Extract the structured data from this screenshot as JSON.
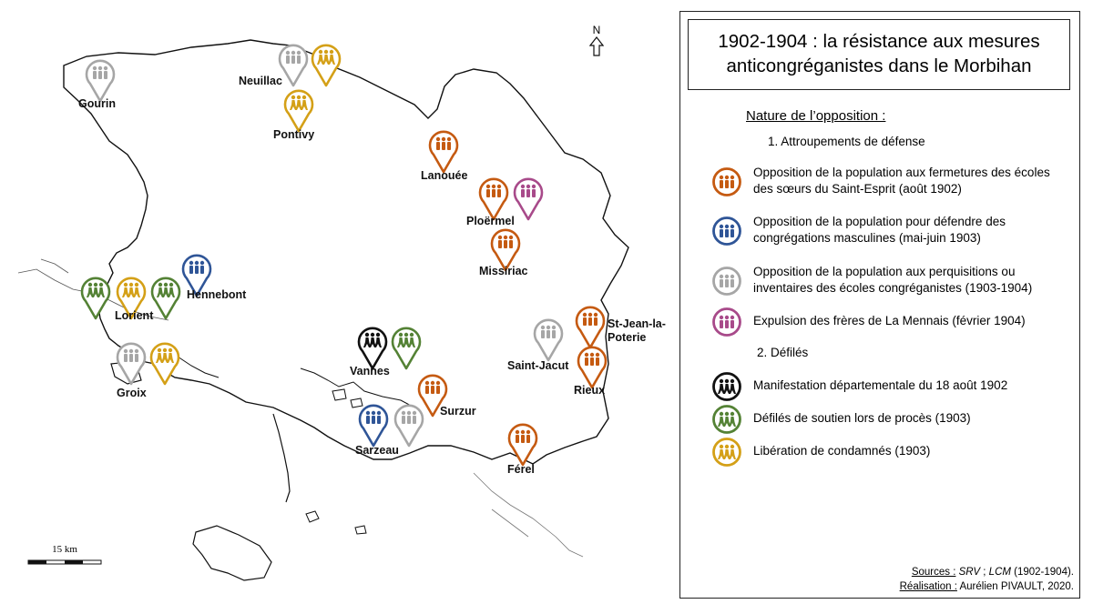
{
  "title": "1902-1904 : la résistance aux mesures anticongréganistes dans le Morbihan",
  "title_lines": [
    "1902-1904 : la résistance aux mesures",
    "anticongréganistes dans le Morbihan"
  ],
  "north_label": "N",
  "scale_label": "15 km",
  "legend": {
    "heading": "Nature de l’opposition :",
    "section1": "1. Attroupements de défense",
    "section2": "2. Défilés",
    "items": [
      {
        "key": "orange",
        "color": "#c55a11",
        "label": "Opposition de la population aux fermetures des écoles des sœurs du Saint-Esprit (août 1902)",
        "icon": "crowd-icon"
      },
      {
        "key": "blue",
        "color": "#2f5597",
        "label": "Opposition de la population pour défendre des congrégations masculines (mai-juin 1903)",
        "icon": "crowd-icon"
      },
      {
        "key": "gray",
        "color": "#a6a6a6",
        "label": "Opposition de la population aux perquisitions ou inventaires des écoles congréganistes (1903-1904)",
        "icon": "crowd-icon"
      },
      {
        "key": "purple",
        "color": "#a84a8a",
        "label": "Expulsion des frères de La Mennais (février 1904)",
        "icon": "crowd-icon"
      },
      {
        "key": "black",
        "color": "#111111",
        "label": "Manifestation départementale du 18 août 1902",
        "icon": "marching-icon"
      },
      {
        "key": "green",
        "color": "#548235",
        "label": "Défilés de soutien lors de procès (1903)",
        "icon": "marching-icon"
      },
      {
        "key": "gold",
        "color": "#d4a017",
        "label": "Libération de condamnés (1903)",
        "icon": "marching-icon"
      }
    ]
  },
  "credits": {
    "sources_label": "Sources :",
    "sources_value_a": "SRV",
    "sources_sep": " ; ",
    "sources_value_b": "LCM",
    "sources_years": " (1902-1904).",
    "realisation_label": "Réalisation :",
    "realisation_value": " Aurélien PIVAULT, 2020."
  },
  "places": [
    {
      "name": "Gourin",
      "markers": [
        "gray"
      ]
    },
    {
      "name": "Neuillac",
      "markers": [
        "gray",
        "gold"
      ]
    },
    {
      "name": "Pontivy",
      "markers": [
        "gold"
      ]
    },
    {
      "name": "Lanouée",
      "markers": [
        "orange"
      ]
    },
    {
      "name": "Ploërmel",
      "markers": [
        "orange",
        "purple"
      ]
    },
    {
      "name": "Missiriac",
      "markers": [
        "orange"
      ]
    },
    {
      "name": "Hennebont",
      "markers": [
        "blue"
      ]
    },
    {
      "name": "Lorient",
      "markers": [
        "green",
        "gold",
        "green"
      ]
    },
    {
      "name": "Groix",
      "markers": [
        "gray",
        "gold"
      ]
    },
    {
      "name": "Vannes",
      "markers": [
        "black",
        "green"
      ]
    },
    {
      "name": "Surzur",
      "markers": [
        "orange"
      ]
    },
    {
      "name": "Sarzeau",
      "markers": [
        "blue",
        "gray"
      ]
    },
    {
      "name": "Saint-Jacut",
      "markers": [
        "gray"
      ]
    },
    {
      "name": "St-Jean-la-Poterie",
      "markers": [
        "orange"
      ]
    },
    {
      "name": "Rieux",
      "markers": [
        "orange"
      ]
    },
    {
      "name": "Férel",
      "markers": [
        "orange"
      ]
    }
  ],
  "place_label_lines": {
    "st_jean_1": "St-Jean-la-",
    "st_jean_2": "Poterie"
  }
}
